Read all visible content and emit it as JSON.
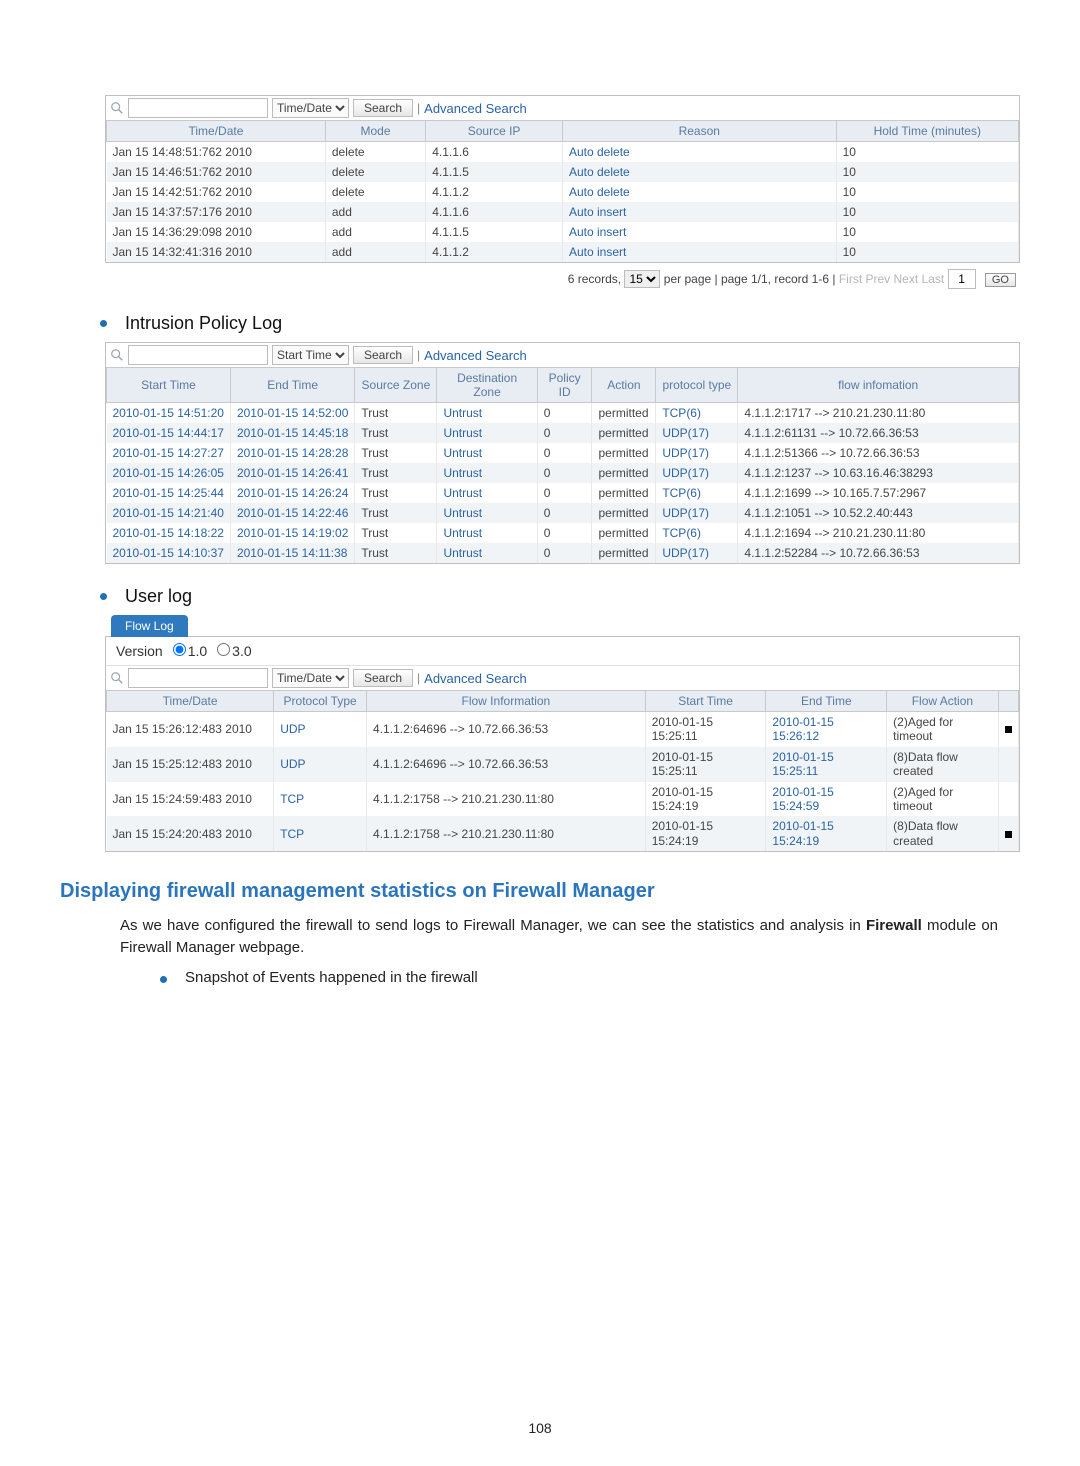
{
  "colors": {
    "link": "#2a63a6",
    "header_bg": "#e8edf3",
    "header_text": "#5a7aa0",
    "alt_row": "#f1f4f7",
    "tab_bg": "#2f79bf",
    "section_blue": "#2a75bb",
    "bullet": "#1f6fb2"
  },
  "top_log": {
    "search": {
      "query": "",
      "field": "Time/Date",
      "search_btn": "Search",
      "advanced": "Advanced Search"
    },
    "columns": [
      "Time/Date",
      "Mode",
      "Source IP",
      "Reason",
      "Hold Time (minutes)"
    ],
    "rows": [
      {
        "time": "Jan 15 14:48:51:762 2010",
        "mode": "delete",
        "src": "4.1.1.6",
        "reason": "Auto delete",
        "hold": "10"
      },
      {
        "time": "Jan 15 14:46:51:762 2010",
        "mode": "delete",
        "src": "4.1.1.5",
        "reason": "Auto delete",
        "hold": "10"
      },
      {
        "time": "Jan 15 14:42:51:762 2010",
        "mode": "delete",
        "src": "4.1.1.2",
        "reason": "Auto delete",
        "hold": "10"
      },
      {
        "time": "Jan 15 14:37:57:176 2010",
        "mode": "add",
        "src": "4.1.1.6",
        "reason": "Auto insert",
        "hold": "10"
      },
      {
        "time": "Jan 15 14:36:29:098 2010",
        "mode": "add",
        "src": "4.1.1.5",
        "reason": "Auto insert",
        "hold": "10"
      },
      {
        "time": "Jan 15 14:32:41:316 2010",
        "mode": "add",
        "src": "4.1.1.2",
        "reason": "Auto insert",
        "hold": "10"
      }
    ],
    "pager": {
      "records_prefix": "6 records,",
      "per_page_value": "15",
      "per_page_suffix": "per page | page 1/1, record 1-6 |",
      "nav": "First  Prev  Next  Last",
      "page_input": "1",
      "go": "GO"
    }
  },
  "intrusion": {
    "title": "Intrusion Policy Log",
    "search": {
      "query": "",
      "field": "Start Time",
      "search_btn": "Search",
      "advanced": "Advanced Search"
    },
    "columns": [
      "Start Time",
      "End Time",
      "Source Zone",
      "Destination Zone",
      "Policy ID",
      "Action",
      "protocol type",
      "flow infomation"
    ],
    "rows": [
      {
        "start": "2010-01-15 14:51:20",
        "end": "2010-01-15 14:52:00",
        "sz": "Trust",
        "dz": "Untrust",
        "pid": "0",
        "act": "permitted",
        "proto": "TCP(6)",
        "flow": "4.1.1.2:1717 --> 210.21.230.11:80"
      },
      {
        "start": "2010-01-15 14:44:17",
        "end": "2010-01-15 14:45:18",
        "sz": "Trust",
        "dz": "Untrust",
        "pid": "0",
        "act": "permitted",
        "proto": "UDP(17)",
        "flow": "4.1.1.2:61131 --> 10.72.66.36:53"
      },
      {
        "start": "2010-01-15 14:27:27",
        "end": "2010-01-15 14:28:28",
        "sz": "Trust",
        "dz": "Untrust",
        "pid": "0",
        "act": "permitted",
        "proto": "UDP(17)",
        "flow": "4.1.1.2:51366 --> 10.72.66.36:53"
      },
      {
        "start": "2010-01-15 14:26:05",
        "end": "2010-01-15 14:26:41",
        "sz": "Trust",
        "dz": "Untrust",
        "pid": "0",
        "act": "permitted",
        "proto": "UDP(17)",
        "flow": "4.1.1.2:1237 --> 10.63.16.46:38293"
      },
      {
        "start": "2010-01-15 14:25:44",
        "end": "2010-01-15 14:26:24",
        "sz": "Trust",
        "dz": "Untrust",
        "pid": "0",
        "act": "permitted",
        "proto": "TCP(6)",
        "flow": "4.1.1.2:1699 --> 10.165.7.57:2967"
      },
      {
        "start": "2010-01-15 14:21:40",
        "end": "2010-01-15 14:22:46",
        "sz": "Trust",
        "dz": "Untrust",
        "pid": "0",
        "act": "permitted",
        "proto": "UDP(17)",
        "flow": "4.1.1.2:1051 --> 10.52.2.40:443"
      },
      {
        "start": "2010-01-15 14:18:22",
        "end": "2010-01-15 14:19:02",
        "sz": "Trust",
        "dz": "Untrust",
        "pid": "0",
        "act": "permitted",
        "proto": "TCP(6)",
        "flow": "4.1.1.2:1694 --> 210.21.230.11:80"
      },
      {
        "start": "2010-01-15 14:10:37",
        "end": "2010-01-15 14:11:38",
        "sz": "Trust",
        "dz": "Untrust",
        "pid": "0",
        "act": "permitted",
        "proto": "UDP(17)",
        "flow": "4.1.1.2:52284 --> 10.72.66.36:53"
      }
    ]
  },
  "userlog": {
    "title": "User log",
    "tab": "Flow Log",
    "version_label": "Version",
    "version_options": [
      "1.0",
      "3.0"
    ],
    "version_selected": "1.0",
    "search": {
      "query": "",
      "field": "Time/Date",
      "search_btn": "Search",
      "advanced": "Advanced Search"
    },
    "columns": [
      "Time/Date",
      "Protocol Type",
      "Flow Information",
      "Start Time",
      "End Time",
      "Flow Action"
    ],
    "rows": [
      {
        "time": "Jan 15 15:26:12:483 2010",
        "proto": "UDP",
        "flow": "4.1.1.2:64696 --> 10.72.66.36:53",
        "start": "2010-01-15 15:25:11",
        "end": "2010-01-15 15:26:12",
        "action": "(2)Aged for timeout"
      },
      {
        "time": "Jan 15 15:25:12:483 2010",
        "proto": "UDP",
        "flow": "4.1.1.2:64696 --> 10.72.66.36:53",
        "start": "2010-01-15 15:25:11",
        "end": "2010-01-15 15:25:11",
        "action": "(8)Data flow created"
      },
      {
        "time": "Jan 15 15:24:59:483 2010",
        "proto": "TCP",
        "flow": "4.1.1.2:1758 --> 210.21.230.11:80",
        "start": "2010-01-15 15:24:19",
        "end": "2010-01-15 15:24:59",
        "action": "(2)Aged for timeout"
      },
      {
        "time": "Jan 15 15:24:20:483 2010",
        "proto": "TCP",
        "flow": "4.1.1.2:1758 --> 210.21.230.11:80",
        "start": "2010-01-15 15:24:19",
        "end": "2010-01-15 15:24:19",
        "action": "(8)Data flow created"
      }
    ]
  },
  "section": {
    "heading": "Displaying firewall management statistics on Firewall Manager",
    "para_a": "As we have configured the firewall to send logs to Firewall Manager, we can see the statistics and analysis in ",
    "para_bold": "Firewall",
    "para_b": " module on Firewall Manager webpage.",
    "bullet": "Snapshot of Events happened in the firewall"
  },
  "page_number": "108"
}
